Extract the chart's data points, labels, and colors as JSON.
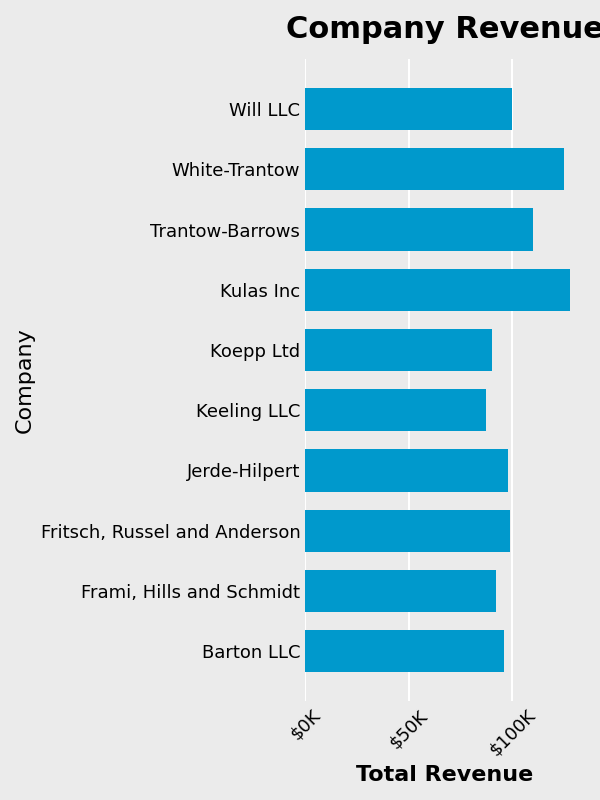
{
  "companies": [
    "Will LLC",
    "White-Trantow",
    "Trantow-Barrows",
    "Kulas Inc",
    "Koepp Ltd",
    "Keeling LLC",
    "Jerde-Hilpert",
    "Fritsch, Russel and Anderson",
    "Frami, Hills and Schmidt",
    "Barton LLC"
  ],
  "revenues": [
    100000,
    125000,
    110000,
    128000,
    90000,
    87000,
    98000,
    99000,
    92000,
    96000
  ],
  "bar_color": "#0099cc",
  "background_color": "#ebebeb",
  "title": "Company Revenue",
  "xlabel": "Total Revenue",
  "ylabel": "Company",
  "title_fontsize": 22,
  "label_fontsize": 16,
  "tick_fontsize": 13,
  "xlim": 135000
}
